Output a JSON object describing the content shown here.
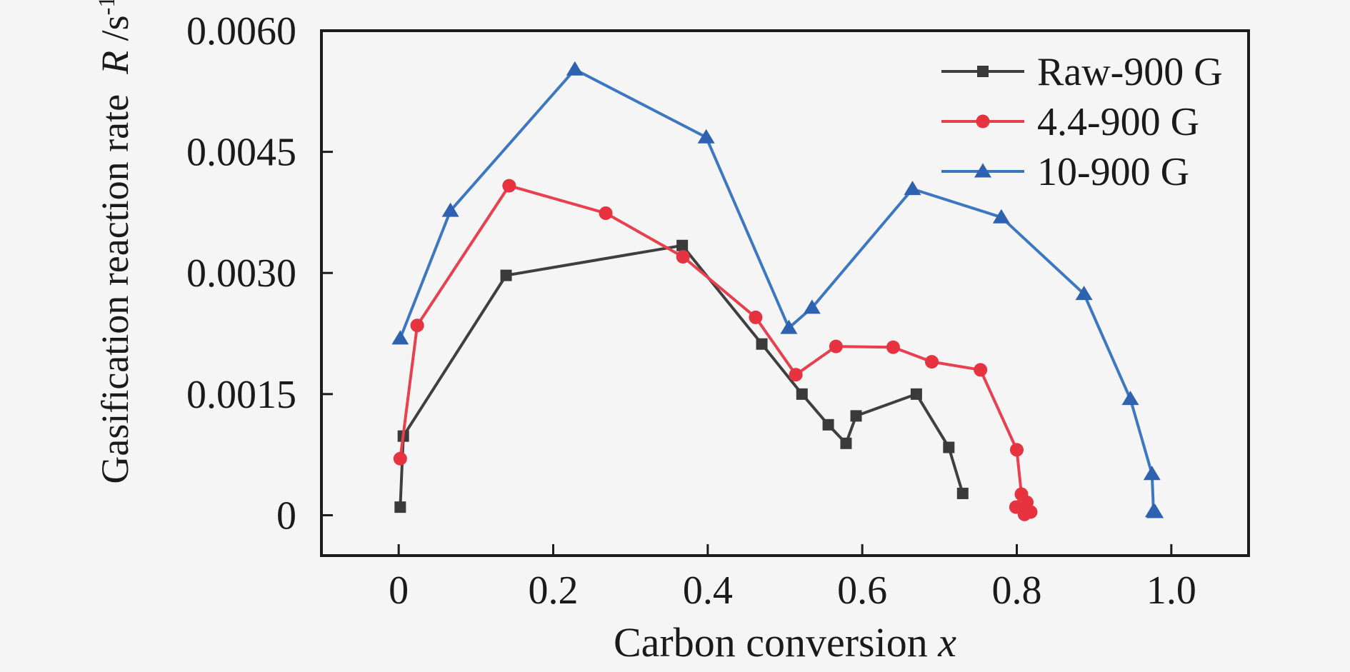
{
  "figure": {
    "background": "#f5f5f6",
    "frame_color": "#1c1c1c",
    "text_color": "#1a1a1a"
  },
  "chart_data": {
    "type": "line",
    "title": "",
    "xlabel": "Carbon conversion x",
    "ylabel": "Gasification reaction rate R /s-1",
    "xlabel_parts": {
      "text": "Carbon conversion",
      "symbol": "x"
    },
    "ylabel_parts": {
      "text": "Gasification reaction rate",
      "symbol": "R",
      "unit": "/s",
      "exponent": "-1"
    },
    "xlim": [
      -0.1,
      1.1
    ],
    "ylim": [
      -0.0005,
      0.006
    ],
    "x_ticks": [
      0,
      0.2,
      0.4,
      0.6,
      0.8,
      1.0
    ],
    "x_tick_labels": [
      "0",
      "0.2",
      "0.4",
      "0.6",
      "0.8",
      "1.0"
    ],
    "y_ticks": [
      0,
      0.0015,
      0.003,
      0.0045,
      0.006
    ],
    "y_tick_labels": [
      "0",
      "0.0015",
      "0.0030",
      "0.0045",
      "0.0060"
    ],
    "grid": false,
    "legend_position": "top-right-inside",
    "series": [
      {
        "name": "Raw-900 G",
        "marker": "square",
        "color": "#3f3f3f",
        "marker_color": "#3a3a3a",
        "points": [
          [
            0.002,
            0.0001
          ],
          [
            0.006,
            0.00098
          ],
          [
            0.139,
            0.00297
          ],
          [
            0.367,
            0.00334
          ],
          [
            0.47,
            0.00212
          ],
          [
            0.522,
            0.0015
          ],
          [
            0.556,
            0.00112
          ],
          [
            0.579,
            0.00089
          ],
          [
            0.592,
            0.00123
          ],
          [
            0.67,
            0.0015
          ],
          [
            0.712,
            0.00084
          ],
          [
            0.73,
            0.00027
          ]
        ]
      },
      {
        "name": "4.4-900 G",
        "marker": "circle",
        "color": "#e8404e",
        "marker_color": "#e7323f",
        "points": [
          [
            0.002,
            0.0007
          ],
          [
            0.024,
            0.00235
          ],
          [
            0.143,
            0.00408
          ],
          [
            0.268,
            0.00374
          ],
          [
            0.368,
            0.0032
          ],
          [
            0.462,
            0.00245
          ],
          [
            0.514,
            0.00174
          ],
          [
            0.566,
            0.00209
          ],
          [
            0.64,
            0.00208
          ],
          [
            0.69,
            0.0019
          ],
          [
            0.753,
            0.0018
          ],
          [
            0.8,
            0.00081
          ],
          [
            0.806,
            0.00026
          ],
          [
            0.799,
            0.0001
          ],
          [
            0.813,
            0.00016
          ],
          [
            0.81,
            1e-05
          ],
          [
            0.818,
            4e-05
          ]
        ]
      },
      {
        "name": "10-900 G",
        "marker": "triangle",
        "color": "#3c78c2",
        "marker_color": "#2e62b1",
        "points": [
          [
            0.002,
            0.00219
          ],
          [
            0.067,
            0.00377
          ],
          [
            0.228,
            0.00552
          ],
          [
            0.398,
            0.00468
          ],
          [
            0.505,
            0.00232
          ],
          [
            0.535,
            0.00257
          ],
          [
            0.665,
            0.00404
          ],
          [
            0.78,
            0.00369
          ],
          [
            0.887,
            0.00274
          ],
          [
            0.947,
            0.00144
          ],
          [
            0.975,
            0.00051
          ],
          [
            0.977,
            5e-05
          ],
          [
            0.979,
            4e-05
          ]
        ]
      }
    ]
  }
}
